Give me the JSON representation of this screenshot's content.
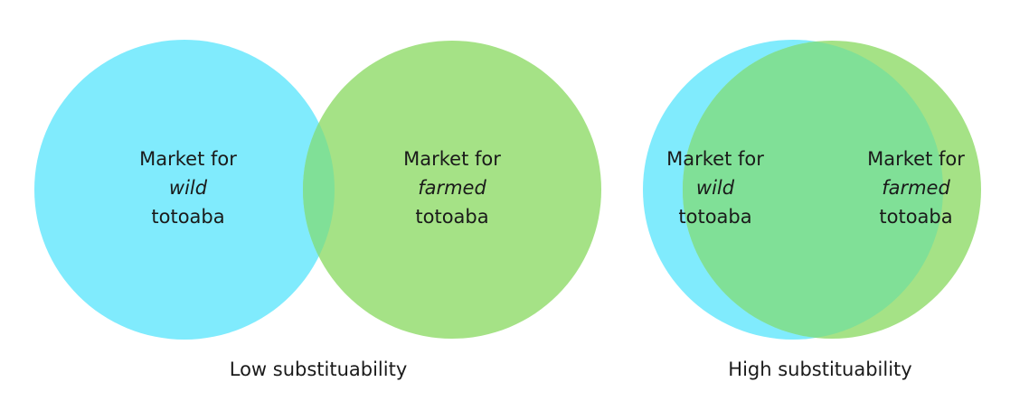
{
  "colors": {
    "wild": "#80ebfd",
    "farmed": "#a5e286",
    "overlap": "#80e097"
  },
  "low": {
    "wild": {
      "line1": "Market for",
      "line2": "wild",
      "line3": "totoaba"
    },
    "farmed": {
      "line1": "Market for",
      "line2": "farmed",
      "line3": "totoaba"
    },
    "caption": "Low substituability"
  },
  "high": {
    "wild": {
      "line1": "Market for",
      "line2": "wild",
      "line3": "totoaba"
    },
    "farmed": {
      "line1": "Market for",
      "line2": "farmed",
      "line3": "totoaba"
    },
    "caption": "High substituability"
  }
}
